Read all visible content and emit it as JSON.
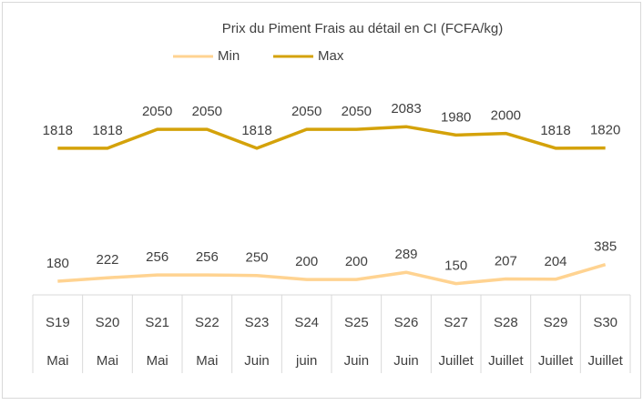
{
  "chart_data": {
    "type": "line",
    "title": "Prix du Piment Frais au détail en CI (FCFA/kg)",
    "categories": [
      [
        "S19",
        "Mai"
      ],
      [
        "S20",
        "Mai"
      ],
      [
        "S21",
        "Mai"
      ],
      [
        "S22",
        "Mai"
      ],
      [
        "S23",
        "Juin"
      ],
      [
        "S24",
        "juin"
      ],
      [
        "S25",
        "Juin"
      ],
      [
        "S26",
        "Juin"
      ],
      [
        "S27",
        "Juillet"
      ],
      [
        "S28",
        "Juillet"
      ],
      [
        "S29",
        "Juillet"
      ],
      [
        "S30",
        "Juillet"
      ]
    ],
    "series": [
      {
        "name": "Min",
        "color": "#ffd391",
        "values": [
          180,
          222,
          256,
          256,
          250,
          200,
          200,
          289,
          150,
          207,
          204,
          385
        ]
      },
      {
        "name": "Max",
        "color": "#d4a20a",
        "values": [
          1818,
          1818,
          2050,
          2050,
          1818,
          2050,
          2050,
          2083,
          1980,
          2000,
          1818,
          1820
        ]
      }
    ],
    "ylim": [
      0,
      2500
    ],
    "legend": "top"
  }
}
